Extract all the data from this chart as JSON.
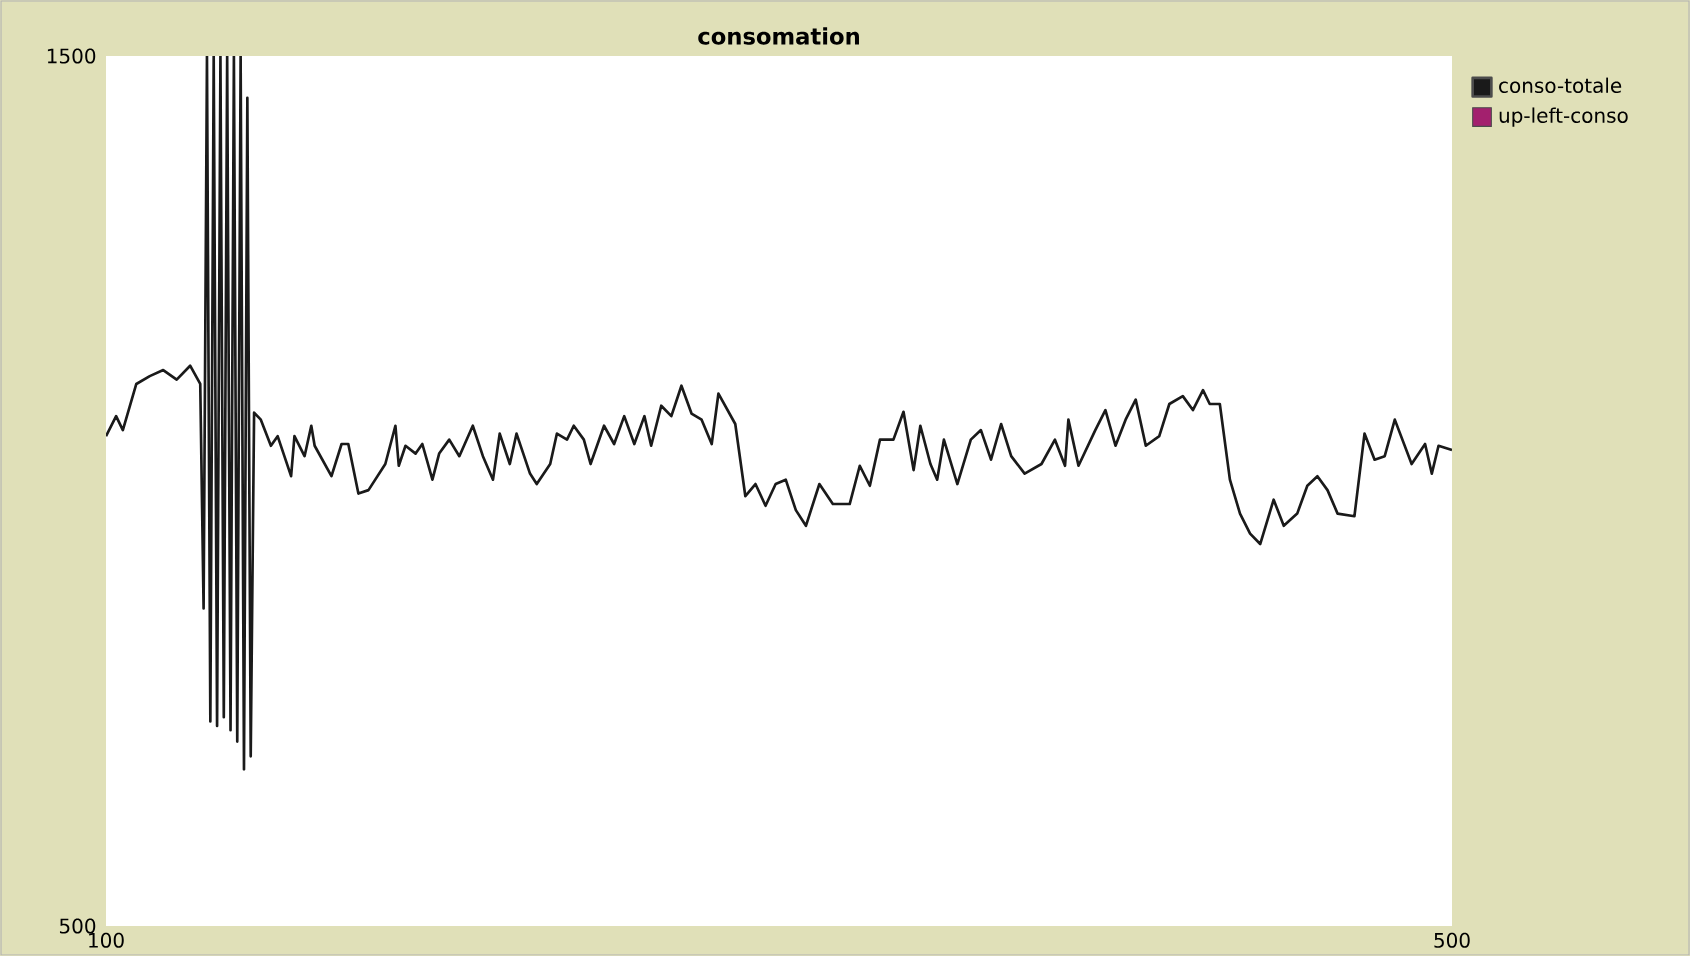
{
  "chart_data": {
    "type": "line",
    "title": "consomation",
    "xlim": [
      100,
      500
    ],
    "ylim": [
      500,
      1500
    ],
    "xticks": [
      100,
      500
    ],
    "yticks": [
      500,
      1500
    ],
    "grid": false,
    "legend": "top right",
    "marker": "none",
    "line_style": "solid",
    "series": [
      {
        "name": "conso-totale",
        "color": "#1a1a1a",
        "x": [
          100,
          103,
          105,
          109,
          113,
          117,
          121,
          125,
          128,
          129,
          130,
          131,
          132,
          133,
          134,
          135,
          136,
          137,
          138,
          139,
          140,
          141,
          142,
          143,
          144,
          146,
          149,
          151,
          155,
          156,
          159,
          161,
          162,
          167,
          170,
          172,
          175,
          178,
          183,
          186,
          187,
          189,
          192,
          194,
          197,
          199,
          202,
          205,
          209,
          212,
          215,
          217,
          220,
          222,
          226,
          228,
          232,
          234,
          237,
          239,
          242,
          244,
          248,
          251,
          254,
          257,
          260,
          262,
          265,
          268,
          271,
          274,
          277,
          280,
          282,
          287,
          290,
          293,
          296,
          299,
          302,
          305,
          308,
          312,
          316,
          321,
          324,
          327,
          330,
          334,
          337,
          340,
          342,
          345,
          347,
          349,
          353,
          357,
          360,
          363,
          366,
          369,
          373,
          378,
          382,
          385,
          386,
          389,
          394,
          397,
          400,
          403,
          406,
          409,
          413,
          416,
          420,
          423,
          426,
          428,
          431,
          434,
          437,
          440,
          443,
          447,
          450,
          454,
          457,
          460,
          463,
          466,
          471,
          474,
          477,
          480,
          483,
          488,
          492,
          494,
          496,
          500
        ],
        "values": [
          1063,
          1086,
          1070,
          1123,
          1132,
          1139,
          1128,
          1144,
          1123,
          865,
          1500,
          735,
          1500,
          730,
          1500,
          740,
          1500,
          725,
          1500,
          712,
          1500,
          680,
          1452,
          695,
          1090,
          1082,
          1052,
          1063,
          1017,
          1063,
          1040,
          1075,
          1052,
          1017,
          1054,
          1054,
          997,
          1001,
          1031,
          1075,
          1029,
          1052,
          1043,
          1054,
          1013,
          1043,
          1059,
          1040,
          1075,
          1040,
          1013,
          1066,
          1031,
          1066,
          1020,
          1008,
          1031,
          1066,
          1059,
          1075,
          1059,
          1031,
          1075,
          1054,
          1086,
          1054,
          1086,
          1052,
          1098,
          1086,
          1121,
          1089,
          1082,
          1054,
          1112,
          1077,
          994,
          1008,
          983,
          1008,
          1013,
          978,
          960,
          1008,
          985,
          985,
          1029,
          1006,
          1059,
          1059,
          1091,
          1024,
          1075,
          1031,
          1013,
          1059,
          1008,
          1059,
          1070,
          1036,
          1077,
          1040,
          1020,
          1031,
          1059,
          1029,
          1082,
          1029,
          1070,
          1093,
          1052,
          1082,
          1105,
          1052,
          1063,
          1100,
          1109,
          1093,
          1116,
          1100,
          1100,
          1013,
          974,
          951,
          939,
          990,
          960,
          974,
          1006,
          1017,
          1001,
          974,
          971,
          1066,
          1036,
          1040,
          1082,
          1031,
          1054,
          1020,
          1052,
          1047
        ]
      },
      {
        "name": "up-left-conso",
        "color": "#a3206e"
      }
    ]
  }
}
